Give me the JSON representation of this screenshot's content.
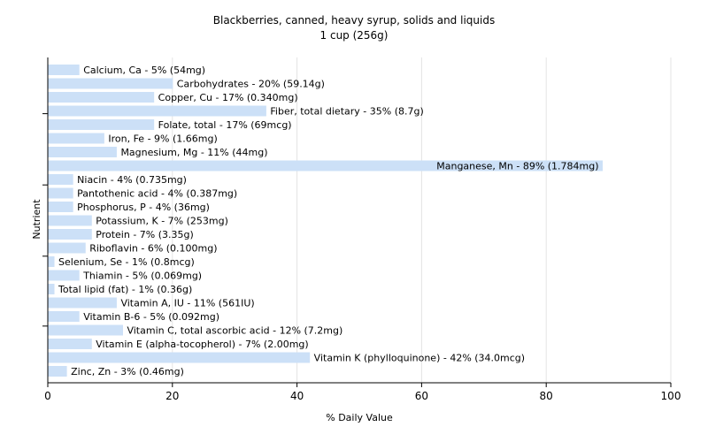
{
  "chart_data": {
    "type": "bar",
    "orientation": "horizontal",
    "title": "Blackberries, canned, heavy syrup, solids and liquids",
    "subtitle": "1 cup (256g)",
    "xlabel": "% Daily Value",
    "ylabel": "Nutrient",
    "xlim": [
      0,
      100
    ],
    "xticks": [
      "0",
      "20",
      "40",
      "60",
      "80",
      "100"
    ],
    "grid": true,
    "bar_color": "#cce0f7",
    "categories": [
      "Calcium, Ca",
      "Carbohydrates",
      "Copper, Cu",
      "Fiber, total dietary",
      "Folate, total",
      "Iron, Fe",
      "Magnesium, Mg",
      "Manganese, Mn",
      "Niacin",
      "Pantothenic acid",
      "Phosphorus, P",
      "Potassium, K",
      "Protein",
      "Riboflavin",
      "Selenium, Se",
      "Thiamin",
      "Total lipid (fat)",
      "Vitamin A, IU",
      "Vitamin B-6",
      "Vitamin C, total ascorbic acid",
      "Vitamin E (alpha-tocopherol)",
      "Vitamin K (phylloquinone)",
      "Zinc, Zn"
    ],
    "values": [
      5,
      20,
      17,
      35,
      17,
      9,
      11,
      89,
      4,
      4,
      4,
      7,
      7,
      6,
      1,
      5,
      1,
      11,
      5,
      12,
      7,
      42,
      3
    ],
    "labels": [
      "Calcium, Ca - 5% (54mg)",
      "Carbohydrates - 20% (59.14g)",
      "Copper, Cu - 17% (0.340mg)",
      "Fiber, total dietary - 35% (8.7g)",
      "Folate, total - 17% (69mcg)",
      "Iron, Fe - 9% (1.66mg)",
      "Magnesium, Mg - 11% (44mg)",
      "Manganese, Mn - 89% (1.784mg)",
      "Niacin - 4% (0.735mg)",
      "Pantothenic acid - 4% (0.387mg)",
      "Phosphorus, P - 4% (36mg)",
      "Potassium, K - 7% (253mg)",
      "Protein - 7% (3.35g)",
      "Riboflavin - 6% (0.100mg)",
      "Selenium, Se - 1% (0.8mcg)",
      "Thiamin - 5% (0.069mg)",
      "Total lipid (fat) - 1% (0.36g)",
      "Vitamin A, IU - 11% (561IU)",
      "Vitamin B-6 - 5% (0.092mg)",
      "Vitamin C, total ascorbic acid - 12% (7.2mg)",
      "Vitamin E (alpha-tocopherol) - 7% (2.00mg)",
      "Vitamin K (phylloquinone) - 42% (34.0mcg)",
      "Zinc, Zn - 3% (0.46mg)"
    ]
  }
}
